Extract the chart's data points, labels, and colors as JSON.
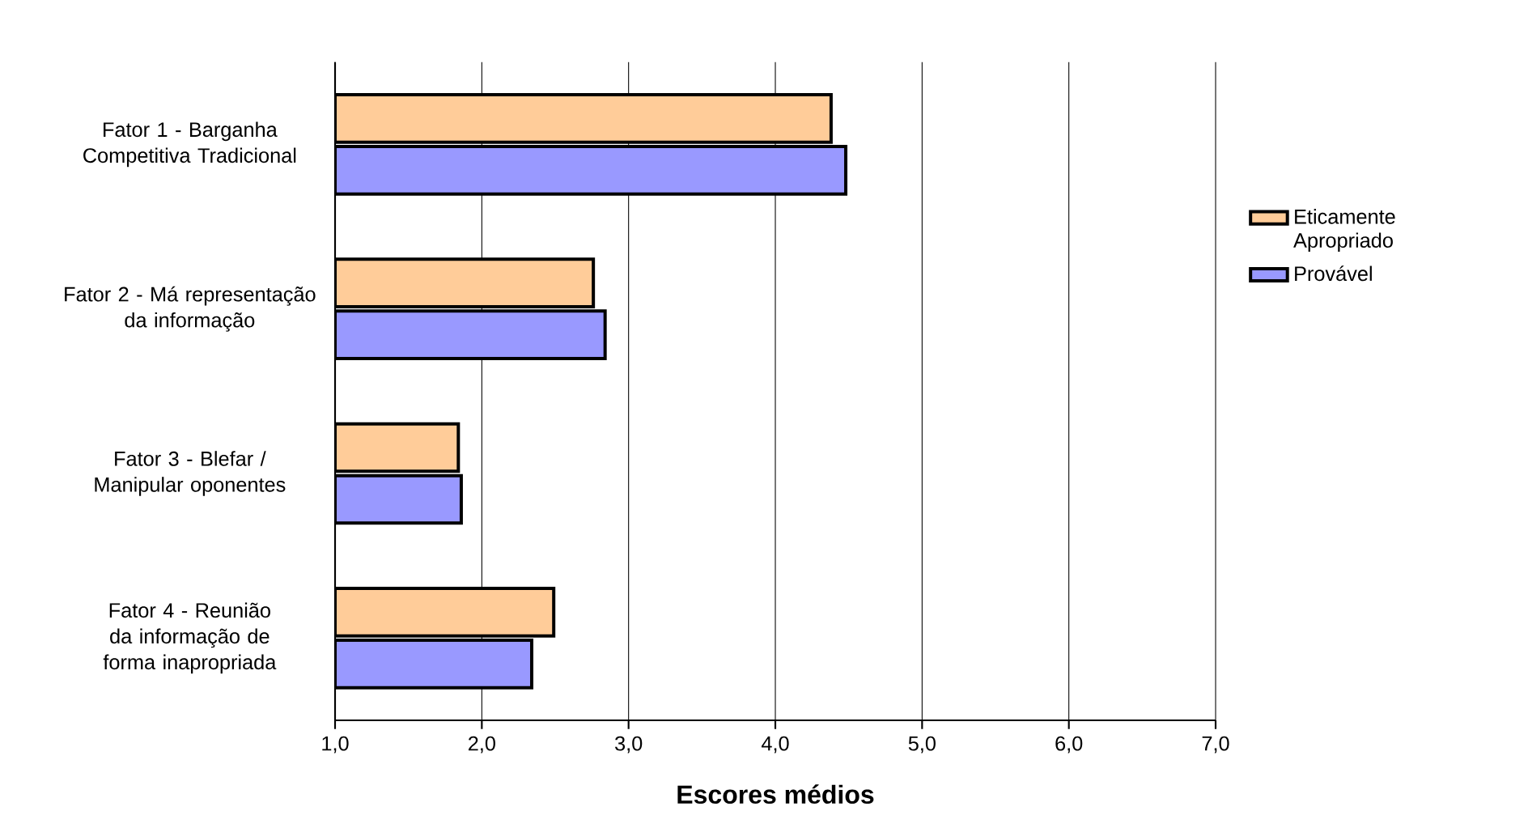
{
  "chart_data": {
    "type": "bar",
    "orientation": "horizontal",
    "xlabel": "Escores médios",
    "categories": [
      "Fator 1 - Barganha Competitiva Tradicional",
      "Fator 2 - Má representação da informação",
      "Fator 3 - Blefar / Manipular oponentes",
      "Fator 4 - Reunião da informação de forma inapropriada"
    ],
    "series": [
      {
        "name": "Eticamente Apropriado",
        "color": "#ffcc99",
        "values": [
          4.38,
          2.76,
          1.84,
          2.49
        ]
      },
      {
        "name": "Provável",
        "color": "#9999ff",
        "values": [
          4.48,
          2.84,
          1.86,
          2.34
        ]
      }
    ],
    "xlim": [
      1,
      7
    ],
    "xticks": [
      {
        "value": 1,
        "label": "1,0"
      },
      {
        "value": 2,
        "label": "2,0"
      },
      {
        "value": 3,
        "label": "3,0"
      },
      {
        "value": 4,
        "label": "4,0"
      },
      {
        "value": 5,
        "label": "5,0"
      },
      {
        "value": 6,
        "label": "6,0"
      },
      {
        "value": 7,
        "label": "7,0"
      }
    ],
    "grid": "x",
    "legend": "right"
  }
}
